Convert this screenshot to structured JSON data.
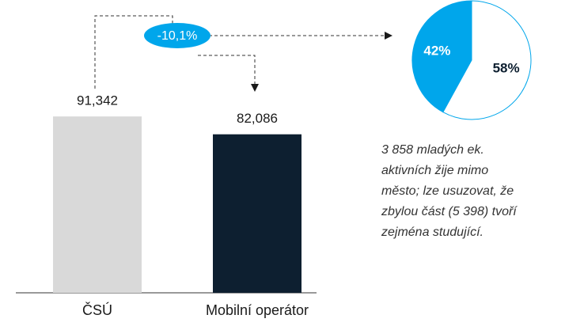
{
  "chart_data": [
    {
      "type": "bar",
      "categories": [
        "ČSÚ",
        "Mobilní operátor"
      ],
      "values": [
        91342,
        82086
      ],
      "value_labels": [
        "91,342",
        "82,086"
      ],
      "colors": [
        "#d9d9d9",
        "#0d1f30"
      ],
      "ylim": [
        0,
        100000
      ],
      "annotation": "-10,1%"
    },
    {
      "type": "pie",
      "values": [
        42,
        58
      ],
      "value_labels": [
        "42%",
        "58%"
      ],
      "colors": [
        "#00a6eb",
        "#ffffff"
      ]
    }
  ],
  "note": [
    "3 858 mladých ek.",
    "aktivních žije mimo",
    "město; lze usuzovat, že",
    "zbylou část (5 398) tvoří",
    "zejména studující."
  ]
}
